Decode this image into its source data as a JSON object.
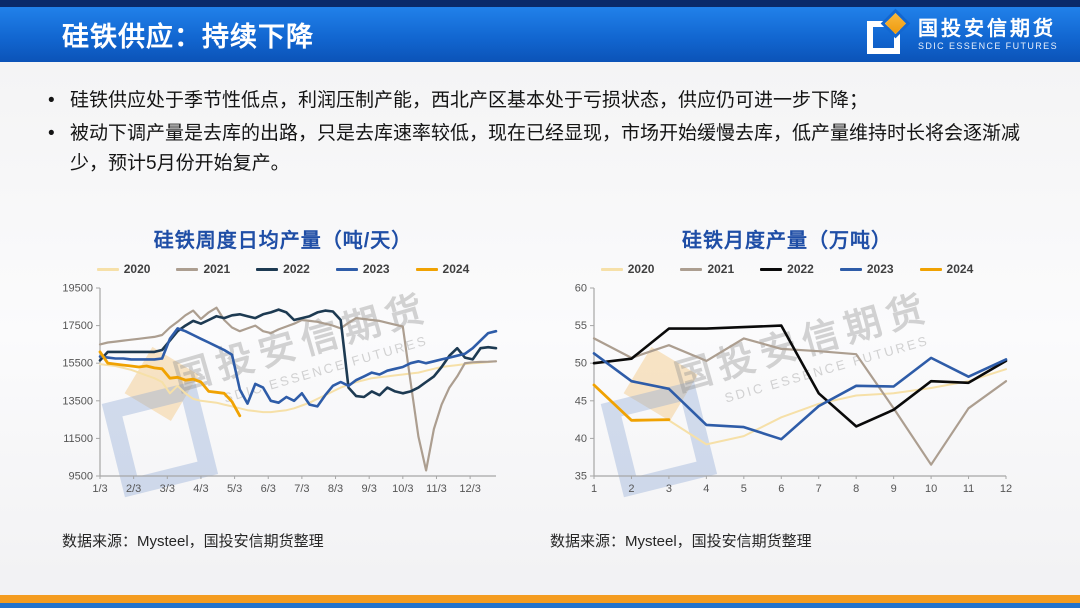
{
  "header": {
    "title": "硅铁供应：持续下降",
    "logo": {
      "cn": "国投安信期货",
      "en": "SDIC ESSENCE FUTURES"
    }
  },
  "bullets": [
    "硅铁供应处于季节性低点，利润压制产能，西北产区基本处于亏损状态，供应仍可进一步下降；",
    "被动下调产量是去库的出路，只是去库速率较低，现在已经显现，市场开始缓慢去库，低产量维持时长将会逐渐减少，预计5月份开始复产。"
  ],
  "watermark": {
    "cn": "国投安信期货",
    "en": "SDIC ESSENCE FUTURES"
  },
  "sources": {
    "left": "数据来源：Mysteel，国投安信期货整理",
    "right": "数据来源：Mysteel，国投安信期货整理"
  },
  "colors": {
    "header_top_strip": "#0a2a6a",
    "header_gradient_top": "#2181ea",
    "header_gradient_bottom": "#0b53b8",
    "chart_title": "#1f4ea6",
    "bottom_bar_orange": "#f49c1f",
    "bottom_bar_blue": "#2273cc"
  },
  "chart_data": [
    {
      "type": "line",
      "title": "硅铁周度日均产量（吨/天）",
      "ylabel": "",
      "xlabel": "",
      "ylim": [
        9500,
        19500
      ],
      "yticks": [
        9500,
        11500,
        13500,
        15500,
        17500,
        19500
      ],
      "x_tick_labels": [
        "1/3",
        "2/3",
        "3/3",
        "4/3",
        "5/3",
        "6/3",
        "7/3",
        "8/3",
        "9/3",
        "10/3",
        "11/3",
        "12/3"
      ],
      "weekly": true,
      "grid": false,
      "legend_position": "top",
      "series": [
        {
          "name": "2020",
          "color": "#F6E0A8",
          "lw": 2,
          "values": [
            15450,
            15400,
            15350,
            15250,
            15150,
            15000,
            14850,
            14700,
            14500,
            13900,
            14300,
            13900,
            13600,
            13500,
            13450,
            13400,
            13300,
            13200,
            13100,
            13000,
            12950,
            12900,
            12900,
            12950,
            13000,
            13100,
            13250,
            13400,
            13600,
            13800,
            14000,
            14200,
            14350,
            14500,
            14600,
            14700,
            14750,
            14800,
            14850,
            14900,
            14950,
            15000,
            15100,
            15200,
            15300,
            15350,
            15400,
            15450,
            15500,
            15520,
            15560,
            15600
          ]
        },
        {
          "name": "2021",
          "color": "#AC9E90",
          "lw": 2.2,
          "values": [
            16500,
            16600,
            16650,
            16700,
            16750,
            16800,
            16850,
            16900,
            17000,
            17400,
            17700,
            18050,
            18300,
            17850,
            18200,
            18450,
            17800,
            17400,
            17200,
            17350,
            17500,
            17200,
            17100,
            17300,
            17450,
            17600,
            17800,
            17750,
            17700,
            17600,
            17500,
            17350,
            17650,
            17900,
            17850,
            17800,
            17750,
            17650,
            17550,
            17450,
            14500,
            11600,
            9800,
            12000,
            13300,
            14200,
            14800,
            15500,
            15550,
            15570,
            15580,
            15600
          ]
        },
        {
          "name": "2022",
          "color": "#1D3A52",
          "lw": 2.6,
          "values": [
            15650,
            16100,
            16100,
            16100,
            16100,
            16100,
            16100,
            16100,
            16200,
            16700,
            17200,
            17500,
            17750,
            17600,
            17800,
            18000,
            17900,
            18050,
            18100,
            18000,
            17900,
            18100,
            18200,
            18350,
            18200,
            17800,
            17900,
            18000,
            18200,
            18300,
            18250,
            17800,
            14200,
            13750,
            13700,
            14000,
            13800,
            14200,
            14000,
            13900,
            14000,
            14200,
            14500,
            14800,
            15300,
            15900,
            16300,
            15800,
            15700,
            16300,
            16350,
            16300
          ]
        },
        {
          "name": "2023",
          "color": "#2E5CA8",
          "lw": 2.6,
          "values": [
            15850,
            15800,
            15750,
            15750,
            15700,
            15700,
            15700,
            15700,
            15750,
            16800,
            17350,
            17200,
            17000,
            16800,
            16600,
            16400,
            16200,
            15950,
            14100,
            13350,
            14400,
            14200,
            13500,
            13400,
            13700,
            13500,
            13900,
            13300,
            13200,
            13800,
            14300,
            14500,
            14300,
            14600,
            14800,
            15000,
            14900,
            15100,
            15200,
            15300,
            15500,
            15600,
            15500,
            15600,
            15700,
            15800,
            15900,
            16000,
            16300,
            16700,
            17100,
            17200
          ]
        },
        {
          "name": "2024",
          "color": "#F0A202",
          "lw": 2.8,
          "values": [
            16100,
            15500,
            15450,
            15400,
            15350,
            15300,
            15350,
            15250,
            15200,
            14700,
            14750,
            14600,
            14650,
            14500,
            14000,
            13950,
            13900,
            13450,
            12700
          ]
        }
      ]
    },
    {
      "type": "line",
      "title": "硅铁月度产量（万吨）",
      "ylabel": "",
      "xlabel": "",
      "ylim": [
        35,
        60
      ],
      "yticks": [
        35,
        40,
        45,
        50,
        55,
        60
      ],
      "x_tick_labels": [
        "1",
        "2",
        "3",
        "4",
        "5",
        "6",
        "7",
        "8",
        "9",
        "10",
        "11",
        "12"
      ],
      "weekly": false,
      "grid": false,
      "legend_position": "top",
      "series": [
        {
          "name": "2020",
          "color": "#F6E0A8",
          "lw": 2,
          "values": [
            47.0,
            42.5,
            42.4,
            39.2,
            40.3,
            42.8,
            44.6,
            45.7,
            46.0,
            46.7,
            47.6,
            49.2
          ]
        },
        {
          "name": "2021",
          "color": "#AC9E90",
          "lw": 2.2,
          "values": [
            53.3,
            50.7,
            52.4,
            50.3,
            53.3,
            51.9,
            51.6,
            51.2,
            44.0,
            36.5,
            44.0,
            47.6
          ]
        },
        {
          "name": "2022",
          "color": "#0A0A0A",
          "lw": 2.6,
          "values": [
            50.0,
            50.6,
            54.6,
            54.6,
            54.8,
            55.0,
            46.0,
            41.6,
            43.8,
            47.6,
            47.4,
            50.3
          ]
        },
        {
          "name": "2023",
          "color": "#2E5CA8",
          "lw": 2.6,
          "values": [
            51.3,
            47.6,
            46.6,
            41.8,
            41.5,
            39.9,
            44.3,
            47.0,
            46.9,
            50.7,
            48.2,
            50.5
          ]
        },
        {
          "name": "2024",
          "color": "#F0A202",
          "lw": 2.8,
          "values": [
            47.1,
            42.4,
            42.5
          ]
        }
      ]
    }
  ]
}
